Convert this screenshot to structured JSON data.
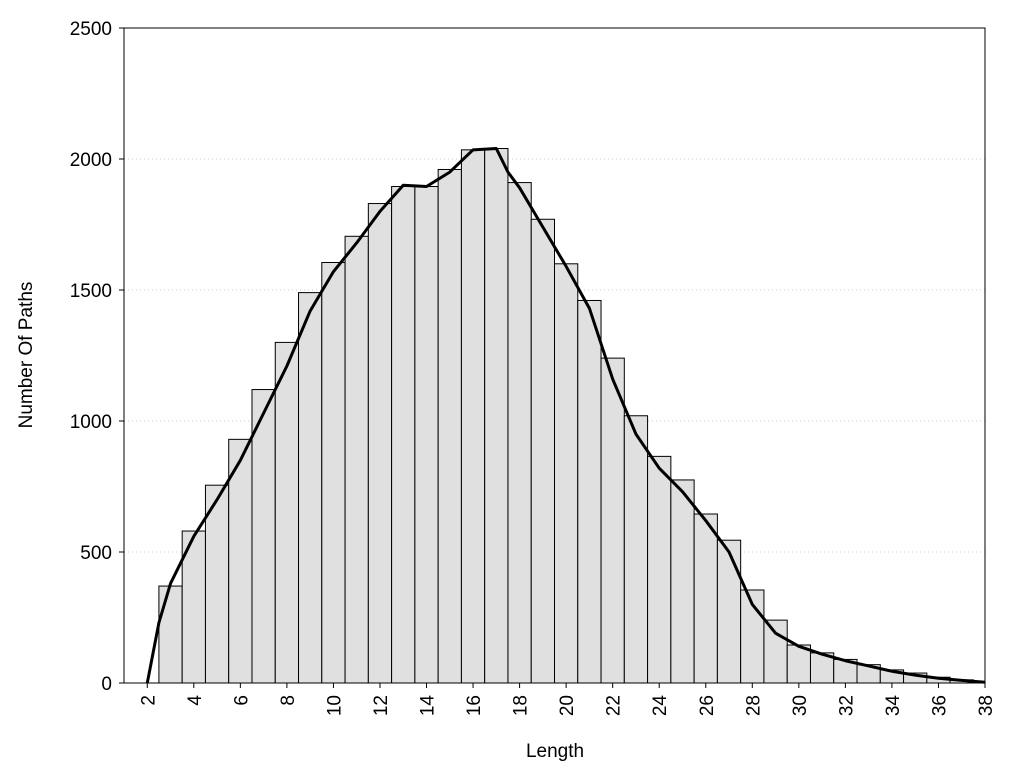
{
  "chart_data": {
    "type": "histogram",
    "x_label": "Length",
    "y_label": "Number Of Paths",
    "bins": [
      2.5,
      3.5,
      4.5,
      5.5,
      6.5,
      7.5,
      8.5,
      9.5,
      10.5,
      11.5,
      12.5,
      13.5,
      14.5,
      15.5,
      16.5,
      17.5,
      18.5,
      19.5,
      20.5,
      21.5,
      22.5,
      23.5,
      24.5,
      25.5,
      26.5,
      27.5,
      28.5,
      29.5,
      30.5,
      31.5,
      32.5,
      33.5,
      34.5,
      35.5,
      36.5,
      37.5
    ],
    "values": [
      370,
      580,
      755,
      930,
      1120,
      1300,
      1490,
      1605,
      1705,
      1830,
      1895,
      1895,
      1960,
      2035,
      2040,
      1910,
      1770,
      1600,
      1460,
      1240,
      1020,
      865,
      775,
      645,
      545,
      355,
      240,
      145,
      115,
      90,
      70,
      50,
      38,
      22,
      12
    ],
    "color": "#e0e0e0",
    "curve": {
      "x": [
        2,
        2.5,
        3,
        4,
        5,
        6,
        7,
        8,
        9,
        10,
        11,
        12,
        13,
        14,
        15,
        16,
        17,
        17.5,
        18,
        19,
        20,
        21,
        22,
        23,
        24,
        25,
        26,
        27,
        28,
        29,
        30,
        31,
        32,
        33,
        34,
        35,
        36,
        37,
        38
      ],
      "values": [
        0,
        230,
        380,
        560,
        700,
        850,
        1030,
        1210,
        1420,
        1570,
        1680,
        1800,
        1900,
        1895,
        1950,
        2035,
        2040,
        1950,
        1890,
        1740,
        1590,
        1430,
        1160,
        950,
        820,
        730,
        620,
        500,
        300,
        190,
        140,
        110,
        85,
        65,
        45,
        30,
        18,
        10,
        3
      ],
      "color": "#000000"
    },
    "xlim": [
      1,
      38
    ],
    "ylim": [
      0,
      2500
    ],
    "xticks": [
      2,
      4,
      6,
      8,
      10,
      12,
      14,
      16,
      18,
      20,
      22,
      24,
      26,
      28,
      30,
      32,
      34,
      36,
      38
    ],
    "yticks": [
      0,
      500,
      1000,
      1500,
      2000,
      2500
    ],
    "grid": true
  }
}
